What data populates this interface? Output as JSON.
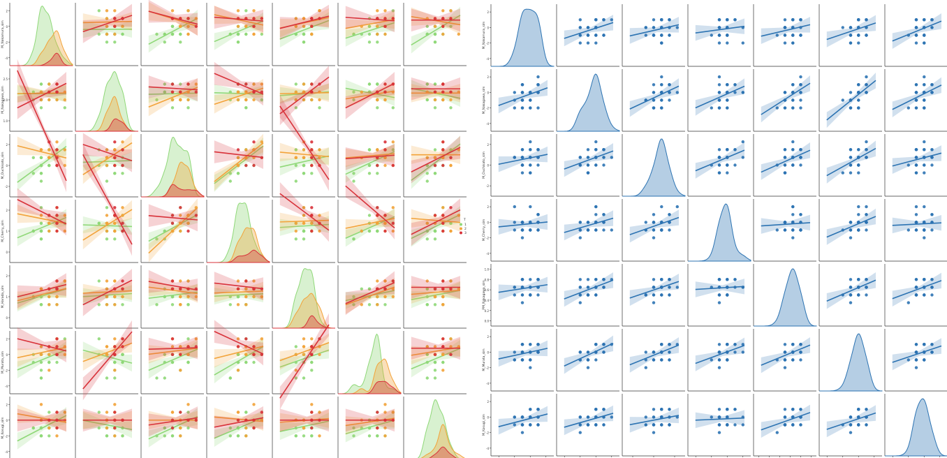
{
  "chart_data": [
    {
      "type": "scatter",
      "subtype": "pairplot-regression-with-hue",
      "grid": false,
      "diagonal": "kde",
      "legend_placement": "right",
      "variables": [
        "M_Nakamura_sim",
        "M_Nakagawa_sim",
        "M_Ouchisato_sim",
        "M_Cherry_sim",
        "M_Harada_sim",
        "M_Murata_sim",
        "M_Kosugi_sim"
      ],
      "xlabels": [
        "M_Nakamura_sim",
        "M_Nakagawa_sim",
        "M_Ouchisato_sim",
        "M_Cherry_sim",
        "M_Harada_sim",
        "M_Murata_sim",
        "M_Kosugi_sim"
      ],
      "ylabels": [
        "M_Nakamura_sim",
        "M_Nakagawa_sim",
        "M_Ouchisato_sim",
        "M_Cherry_sim",
        "M_Harada_sim",
        "M_Murata_sim",
        "M_Kosugi_sim"
      ],
      "ranges": [
        [
          -4.5,
          2.5
        ],
        [
          -1.0,
          2.8
        ],
        [
          -2.5,
          2.5
        ],
        [
          -0.5,
          2.8
        ],
        [
          -0.8,
          2.8
        ],
        [
          -4.5,
          2.5
        ],
        [
          -4.5,
          2.5
        ]
      ],
      "ticks": [
        [
          "-4",
          "-2",
          "0",
          "2"
        ],
        [
          "1.0",
          "2.0",
          "2.5"
        ],
        [
          "-2",
          "0",
          "2"
        ],
        [
          "0",
          "1",
          "2"
        ],
        [
          "0",
          "1",
          "2"
        ],
        [
          "-4",
          "-2",
          "0",
          "2"
        ],
        [
          "-4",
          "-2",
          "0",
          "2"
        ]
      ],
      "hue": {
        "title": "T",
        "levels": [
          "1",
          "2",
          "3"
        ],
        "colors": [
          "#8fd878",
          "#f2a33a",
          "#d8323a"
        ]
      },
      "points_per_level": [
        24,
        14,
        5
      ]
    },
    {
      "type": "scatter",
      "subtype": "pairplot-regression",
      "grid": false,
      "diagonal": "kde",
      "variables": [
        "M_Nakamura_sim",
        "M_Nakagawa_sim",
        "M_Ouchisato_sim",
        "M_Cherry_sim",
        "PM_Nakagawa_sim",
        "M_Murata_sim",
        "M_Kosugi_sim"
      ],
      "xlabels": [
        "M_Nakamura_sim",
        "M_Nakagawa_sim",
        "M_Ouchisato_sim",
        "M_Cherry_sim",
        "PM_Nakagawa_sim",
        "M_Murata_sim",
        "M_Kosugi_sim"
      ],
      "ylabels": [
        "M_Nakamura_sim",
        "M_Nakagawa_sim",
        "M_Ouchisato_sim",
        "M_Cherry_sim",
        "PM_Nakagawa_sim",
        "M_Murata_sim",
        "M_Kosugi_sim"
      ],
      "ranges": [
        [
          -4.5,
          2.5
        ],
        [
          -4.5,
          2.5
        ],
        [
          -2.5,
          2.5
        ],
        [
          -4.5,
          2.5
        ],
        [
          -0.3,
          1.1
        ],
        [
          -4.5,
          2.5
        ],
        [
          -4.5,
          2.5
        ]
      ],
      "ticks": [
        [
          "-4",
          "-2",
          "0",
          "2"
        ],
        [
          "-4",
          "-2",
          "0",
          "2"
        ],
        [
          "-2",
          "0",
          "2"
        ],
        [
          "-4",
          "-2",
          "0",
          "2"
        ],
        [
          "0.0",
          "0.2",
          "0.4",
          "0.6",
          "0.8",
          "1.0"
        ],
        [
          "-4",
          "-2",
          "0",
          "2"
        ],
        [
          "-4",
          "-2",
          "0",
          "2"
        ]
      ],
      "color": "#2c73b2",
      "points": 40
    }
  ]
}
